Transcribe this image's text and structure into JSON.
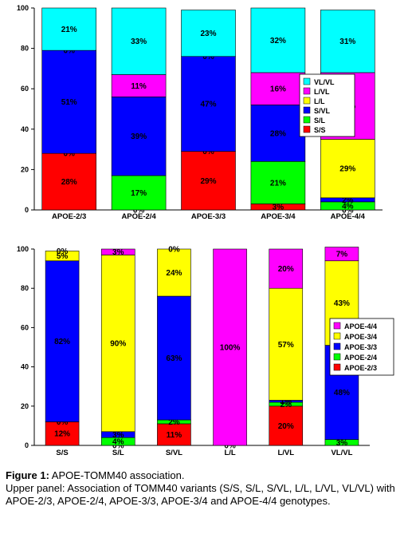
{
  "chart_data": [
    {
      "type": "bar",
      "stacked": true,
      "categories": [
        "APOE-2/3",
        "APOE-2/4",
        "APOE-3/3",
        "APOE-3/4",
        "APOE-4/4"
      ],
      "ylim": [
        0,
        100
      ],
      "yticks": [
        0,
        20,
        40,
        60,
        80,
        100
      ],
      "legend_position": "right",
      "series": [
        {
          "name": "S/S",
          "color": "#ff0000",
          "values": [
            28,
            0,
            29,
            3,
            0
          ],
          "labels": [
            "28%",
            "0%",
            "29%",
            "3%",
            "0%"
          ]
        },
        {
          "name": "S/L",
          "color": "#00ff00",
          "values": [
            0,
            17,
            0,
            21,
            4
          ],
          "labels": [
            "0%",
            "17%",
            "0%",
            "21%",
            "4%"
          ]
        },
        {
          "name": "S/VL",
          "color": "#0000ff",
          "values": [
            51,
            39,
            47,
            28,
            2
          ],
          "labels": [
            "51%",
            "39%",
            "47%",
            "28%",
            "2%"
          ]
        },
        {
          "name": "L/L",
          "color": "#ffff00",
          "values": [
            0,
            0,
            0,
            0,
            29
          ],
          "labels": [
            "",
            "",
            "",
            "",
            "29%"
          ]
        },
        {
          "name": "L/VL",
          "color": "#ff00ff",
          "values": [
            0,
            11,
            0,
            16,
            33
          ],
          "labels": [
            "0%",
            "11%",
            "0%",
            "16%",
            "33%"
          ]
        },
        {
          "name": "VL/VL",
          "color": "#00ffff",
          "values": [
            21,
            33,
            23,
            32,
            31
          ],
          "labels": [
            "21%",
            "33%",
            "23%",
            "32%",
            "31%"
          ]
        }
      ]
    },
    {
      "type": "bar",
      "stacked": true,
      "categories": [
        "S/S",
        "S/L",
        "S/VL",
        "L/L",
        "L/VL",
        "VL/VL"
      ],
      "ylim": [
        0,
        100
      ],
      "yticks": [
        0,
        20,
        40,
        60,
        80,
        100
      ],
      "legend_position": "right",
      "series": [
        {
          "name": "APOE-2/3",
          "color": "#ff0000",
          "values": [
            12,
            0,
            11,
            0,
            20,
            0
          ],
          "labels": [
            "12%",
            "0%",
            "11%",
            "0%",
            "20%",
            ""
          ]
        },
        {
          "name": "APOE-2/4",
          "color": "#00ff00",
          "values": [
            0,
            4,
            2,
            0,
            2,
            3
          ],
          "labels": [
            "0%",
            "4%",
            "2%",
            "",
            "2%",
            "3%"
          ]
        },
        {
          "name": "APOE-3/3",
          "color": "#0000ff",
          "values": [
            82,
            3,
            63,
            0,
            1,
            48
          ],
          "labels": [
            "82%",
            "3%",
            "63%",
            "",
            "1%",
            "48%"
          ]
        },
        {
          "name": "APOE-3/4",
          "color": "#ffff00",
          "values": [
            5,
            90,
            24,
            0,
            57,
            43
          ],
          "labels": [
            "5%",
            "90%",
            "24%",
            "",
            "57%",
            "43%"
          ]
        },
        {
          "name": "APOE-4/4",
          "color": "#ff00ff",
          "values": [
            0,
            3,
            0,
            100,
            20,
            7
          ],
          "labels": [
            "0%",
            "3%",
            "0%",
            "100%",
            "20%",
            "7%"
          ]
        }
      ]
    }
  ],
  "caption": {
    "figure_label": "Figure 1:",
    "title": " APOE-TOMM40 association.",
    "body": "Upper panel: Association of TOMM40 variants (S/S, S/L, S/VL, L/L, L/VL, VL/VL) with APOE-2/3, APOE-2/4, APOE-3/3, APOE-3/4 and APOE-4/4 genotypes."
  }
}
